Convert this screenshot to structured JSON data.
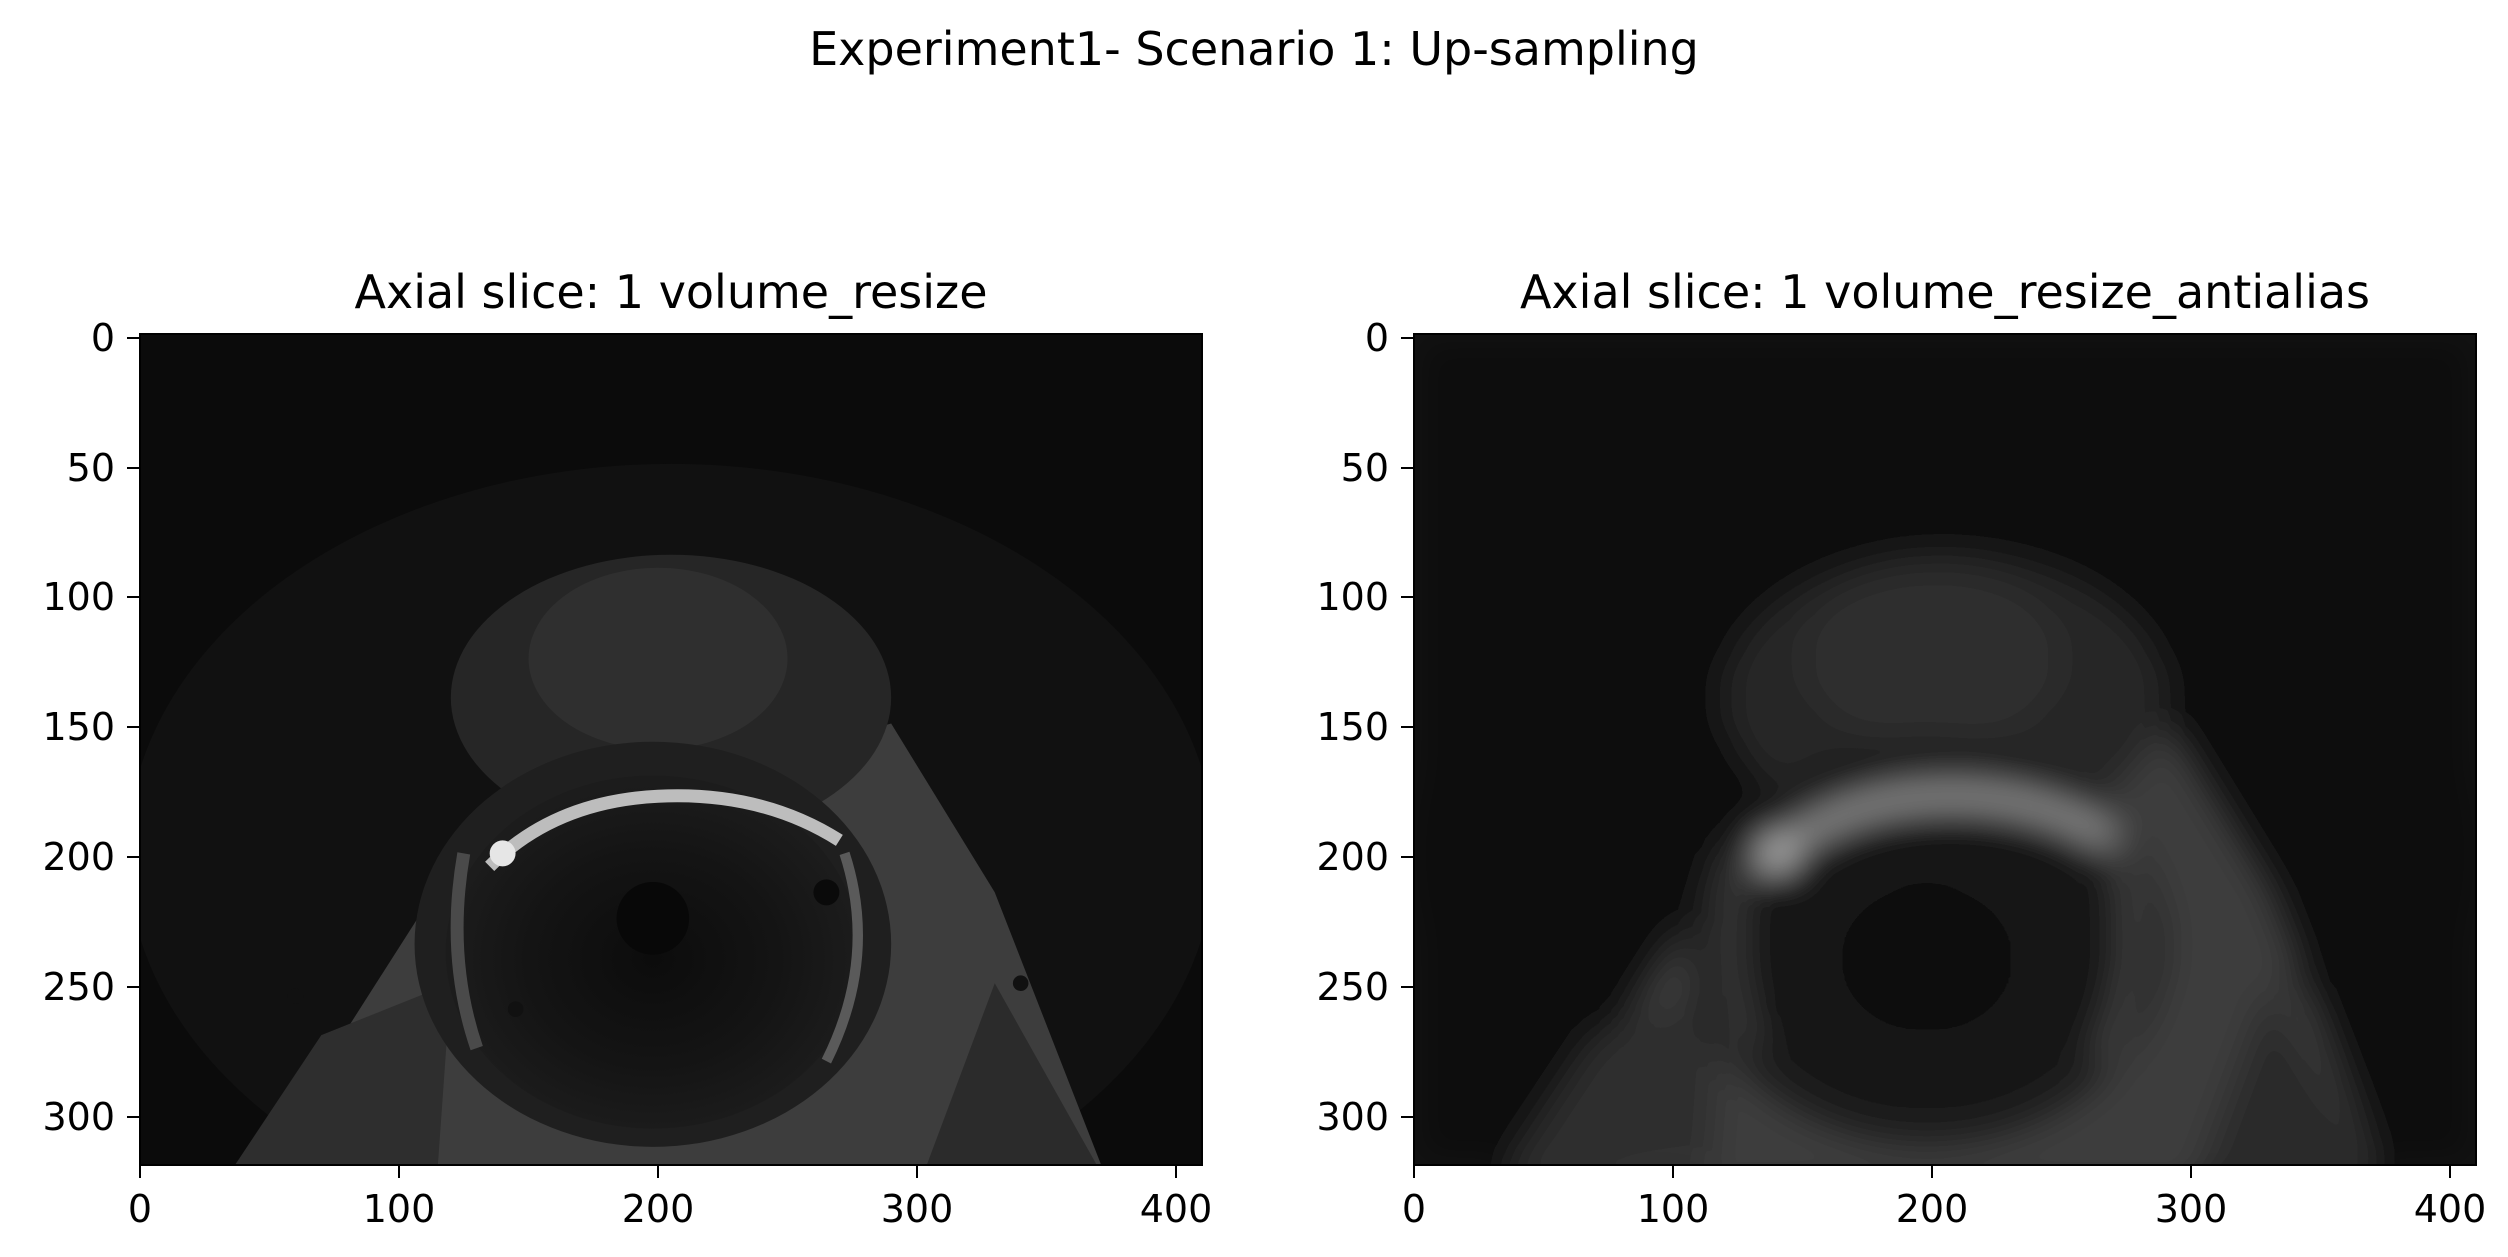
{
  "figure": {
    "suptitle": "Experiment1- Scenario 1: Up-sampling"
  },
  "panels": [
    {
      "title": "Axial slice: 1 volume_resize",
      "x_ticks": [
        "0",
        "100",
        "200",
        "300",
        "400"
      ],
      "y_ticks": [
        "0",
        "50",
        "100",
        "150",
        "200",
        "250",
        "300"
      ],
      "image": "mri-axial-slice-sharp"
    },
    {
      "title": "Axial slice: 1 volume_resize_antialias",
      "x_ticks": [
        "0",
        "100",
        "200",
        "300",
        "400"
      ],
      "y_ticks": [
        "0",
        "50",
        "100",
        "150",
        "200",
        "250",
        "300"
      ],
      "image": "mri-axial-slice-blurred"
    }
  ]
}
